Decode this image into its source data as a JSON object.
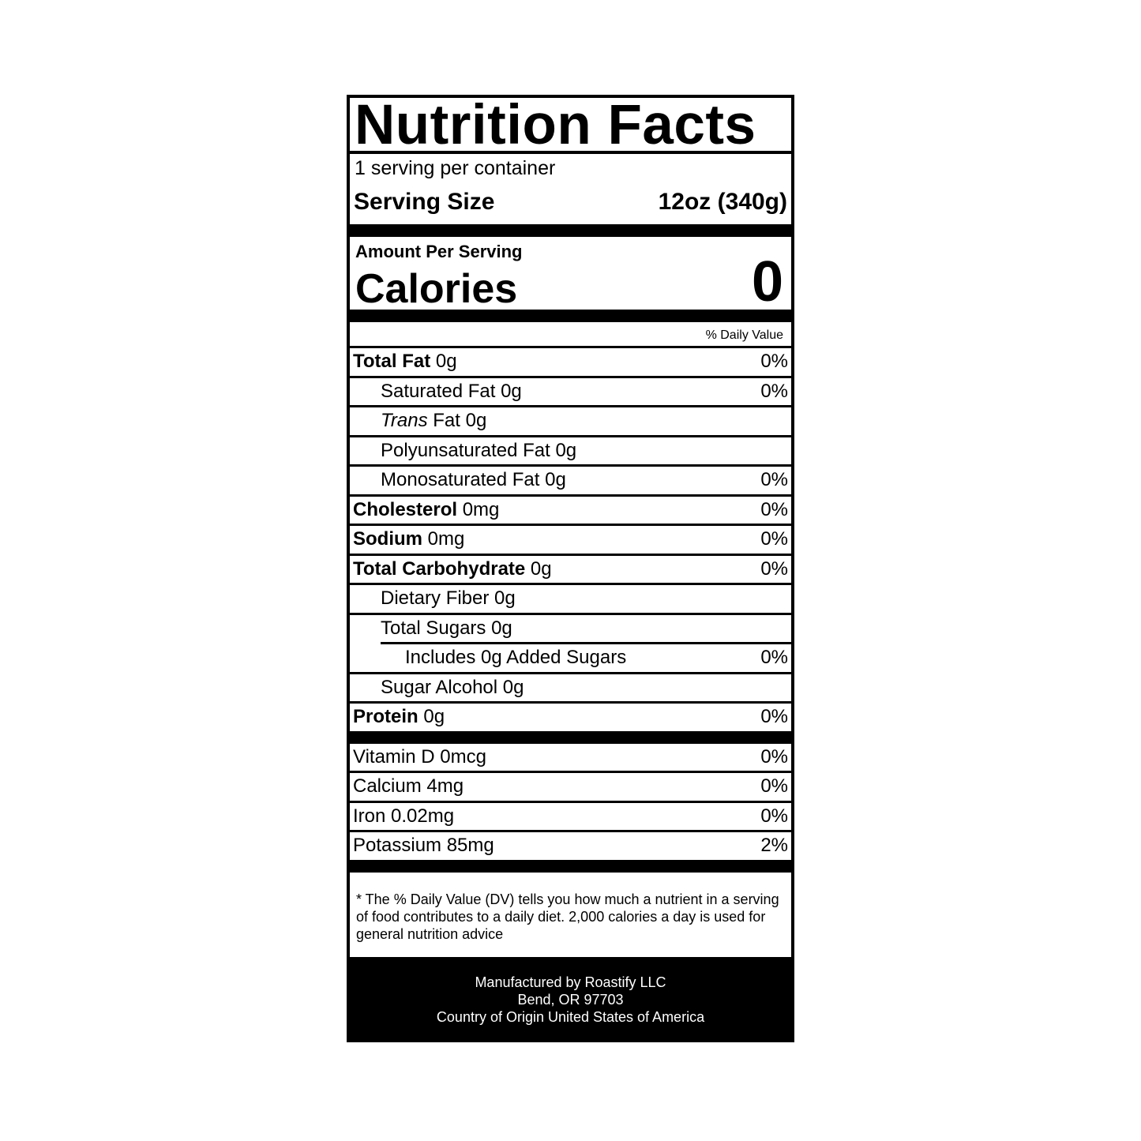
{
  "title": "Nutrition Facts",
  "servings_per_container": "1 serving per container",
  "serving_size": {
    "label": "Serving Size",
    "value": "12oz (340g)"
  },
  "calories": {
    "amount_label": "Amount Per Serving",
    "label": "Calories",
    "value": "0"
  },
  "dv_header": "% Daily Value",
  "nutrients": [
    {
      "name": "Total Fat",
      "amount": "0g",
      "dv": "0%"
    },
    {
      "name": "Saturated Fat 0g",
      "dv": "0%"
    },
    {
      "name_italic": "Trans",
      "name": " Fat 0g"
    },
    {
      "name": "Polyunsaturated Fat 0g"
    },
    {
      "name": "Monosaturated Fat 0g",
      "dv": "0%"
    },
    {
      "name": "Cholesterol",
      "amount": "0mg",
      "dv": "0%"
    },
    {
      "name": "Sodium",
      "amount": "0mg",
      "dv": "0%"
    },
    {
      "name": "Total Carbohydrate",
      "amount": "0g",
      "dv": "0%"
    },
    {
      "name": "Dietary Fiber 0g"
    },
    {
      "name": "Total Sugars 0g"
    },
    {
      "name": "Includes 0g Added Sugars",
      "dv": "0%"
    },
    {
      "name": "Sugar Alcohol 0g"
    },
    {
      "name": "Protein",
      "amount": "0g",
      "dv": "0%"
    }
  ],
  "vitamins": [
    {
      "name": "Vitamin D 0mcg",
      "dv": "0%"
    },
    {
      "name": "Calcium 4mg",
      "dv": "0%"
    },
    {
      "name": "Iron 0.02mg",
      "dv": "0%"
    },
    {
      "name": "Potassium 85mg",
      "dv": "2%"
    }
  ],
  "footnote": "* The % Daily Value (DV) tells you how much a nutrient in a serving of food contributes to a daily diet. 2,000 calories a day is used for general nutrition advice",
  "manufacturer": {
    "line1": "Manufactured by Roastify LLC",
    "line2": "Bend, OR 97703",
    "line3": "Country of Origin United States of America"
  }
}
